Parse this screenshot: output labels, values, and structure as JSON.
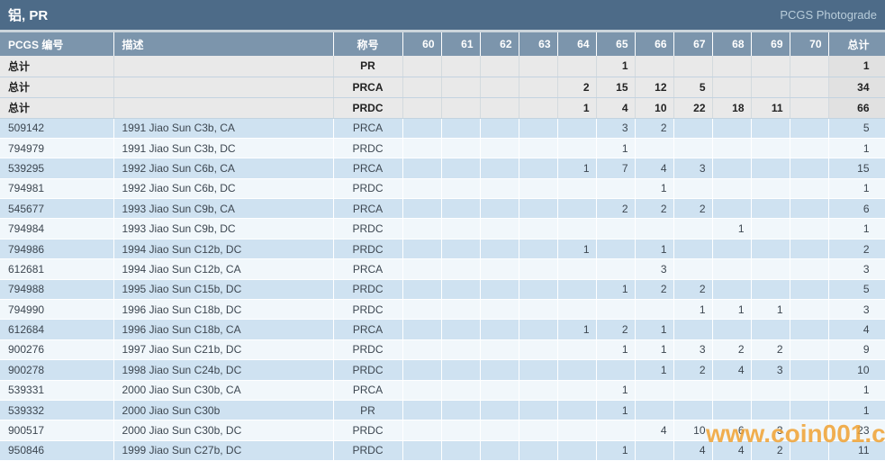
{
  "page": {
    "title": "铝, PR",
    "brand": "PCGS Photograde",
    "watermark": "www.coin001.com"
  },
  "colors": {
    "title_bar": "#4d6b88",
    "header_bg": "#7c95ac",
    "summary_bg": "#e9e9e9",
    "row_blue": "#cfe2f1",
    "row_light": "#f1f7fb",
    "pcgs_link": "#a06a4a",
    "watermark": "#f0a232"
  },
  "table": {
    "columns": [
      "PCGS 编号",
      "描述",
      "称号",
      "60",
      "61",
      "62",
      "63",
      "64",
      "65",
      "66",
      "67",
      "68",
      "69",
      "70",
      "总计"
    ],
    "summary_label": "总计",
    "summary_rows": [
      {
        "designation": "PR",
        "grades": [
          "",
          "",
          "",
          "",
          "",
          "1",
          "",
          "",
          "",
          "",
          ""
        ],
        "total": "1"
      },
      {
        "designation": "PRCA",
        "grades": [
          "",
          "",
          "",
          "",
          "2",
          "15",
          "12",
          "5",
          "",
          "",
          ""
        ],
        "total": "34"
      },
      {
        "designation": "PRDC",
        "grades": [
          "",
          "",
          "",
          "",
          "1",
          "4",
          "10",
          "22",
          "18",
          "11",
          ""
        ],
        "total": "66"
      }
    ],
    "rows": [
      {
        "pcgs_no": "509142",
        "description": "1991 Jiao Sun C3b, CA",
        "designation": "PRCA",
        "grades": [
          "",
          "",
          "",
          "",
          "",
          "3",
          "2",
          "",
          "",
          "",
          ""
        ],
        "total": "5"
      },
      {
        "pcgs_no": "794979",
        "description": "1991 Jiao Sun C3b, DC",
        "designation": "PRDC",
        "grades": [
          "",
          "",
          "",
          "",
          "",
          "1",
          "",
          "",
          "",
          "",
          ""
        ],
        "total": "1"
      },
      {
        "pcgs_no": "539295",
        "description": "1992 Jiao Sun C6b, CA",
        "designation": "PRCA",
        "grades": [
          "",
          "",
          "",
          "",
          "1",
          "7",
          "4",
          "3",
          "",
          "",
          ""
        ],
        "total": "15"
      },
      {
        "pcgs_no": "794981",
        "description": "1992 Jiao Sun C6b, DC",
        "designation": "PRDC",
        "grades": [
          "",
          "",
          "",
          "",
          "",
          "",
          "1",
          "",
          "",
          "",
          ""
        ],
        "total": "1"
      },
      {
        "pcgs_no": "545677",
        "description": "1993 Jiao Sun C9b, CA",
        "designation": "PRCA",
        "grades": [
          "",
          "",
          "",
          "",
          "",
          "2",
          "2",
          "2",
          "",
          "",
          ""
        ],
        "total": "6"
      },
      {
        "pcgs_no": "794984",
        "description": "1993 Jiao Sun C9b, DC",
        "designation": "PRDC",
        "grades": [
          "",
          "",
          "",
          "",
          "",
          "",
          "",
          "",
          "1",
          "",
          ""
        ],
        "total": "1"
      },
      {
        "pcgs_no": "794986",
        "description": "1994 Jiao Sun C12b, DC",
        "designation": "PRDC",
        "grades": [
          "",
          "",
          "",
          "",
          "1",
          "",
          "1",
          "",
          "",
          "",
          ""
        ],
        "total": "2"
      },
      {
        "pcgs_no": "612681",
        "description": "1994 Jiao Sun C12b, CA",
        "designation": "PRCA",
        "grades": [
          "",
          "",
          "",
          "",
          "",
          "",
          "3",
          "",
          "",
          "",
          ""
        ],
        "total": "3"
      },
      {
        "pcgs_no": "794988",
        "description": "1995 Jiao Sun C15b, DC",
        "designation": "PRDC",
        "grades": [
          "",
          "",
          "",
          "",
          "",
          "1",
          "2",
          "2",
          "",
          "",
          ""
        ],
        "total": "5"
      },
      {
        "pcgs_no": "794990",
        "description": "1996 Jiao Sun C18b, DC",
        "designation": "PRDC",
        "grades": [
          "",
          "",
          "",
          "",
          "",
          "",
          "",
          "1",
          "1",
          "1",
          ""
        ],
        "total": "3"
      },
      {
        "pcgs_no": "612684",
        "description": "1996 Jiao Sun C18b, CA",
        "designation": "PRCA",
        "grades": [
          "",
          "",
          "",
          "",
          "1",
          "2",
          "1",
          "",
          "",
          "",
          ""
        ],
        "total": "4"
      },
      {
        "pcgs_no": "900276",
        "description": "1997 Jiao Sun C21b, DC",
        "designation": "PRDC",
        "grades": [
          "",
          "",
          "",
          "",
          "",
          "1",
          "1",
          "3",
          "2",
          "2",
          ""
        ],
        "total": "9"
      },
      {
        "pcgs_no": "900278",
        "description": "1998 Jiao Sun C24b, DC",
        "designation": "PRDC",
        "grades": [
          "",
          "",
          "",
          "",
          "",
          "",
          "1",
          "2",
          "4",
          "3",
          ""
        ],
        "total": "10"
      },
      {
        "pcgs_no": "539331",
        "description": "2000 Jiao Sun C30b, CA",
        "designation": "PRCA",
        "grades": [
          "",
          "",
          "",
          "",
          "",
          "1",
          "",
          "",
          "",
          "",
          ""
        ],
        "total": "1"
      },
      {
        "pcgs_no": "539332",
        "description": "2000 Jiao Sun C30b",
        "designation": "PR",
        "grades": [
          "",
          "",
          "",
          "",
          "",
          "1",
          "",
          "",
          "",
          "",
          ""
        ],
        "total": "1"
      },
      {
        "pcgs_no": "900517",
        "description": "2000 Jiao Sun C30b, DC",
        "designation": "PRDC",
        "grades": [
          "",
          "",
          "",
          "",
          "",
          "",
          "4",
          "10",
          "6",
          "3",
          ""
        ],
        "total": "23"
      },
      {
        "pcgs_no": "950846",
        "description": "1999 Jiao Sun C27b, DC",
        "designation": "PRDC",
        "grades": [
          "",
          "",
          "",
          "",
          "",
          "1",
          "",
          "4",
          "4",
          "2",
          ""
        ],
        "total": "11"
      }
    ]
  }
}
